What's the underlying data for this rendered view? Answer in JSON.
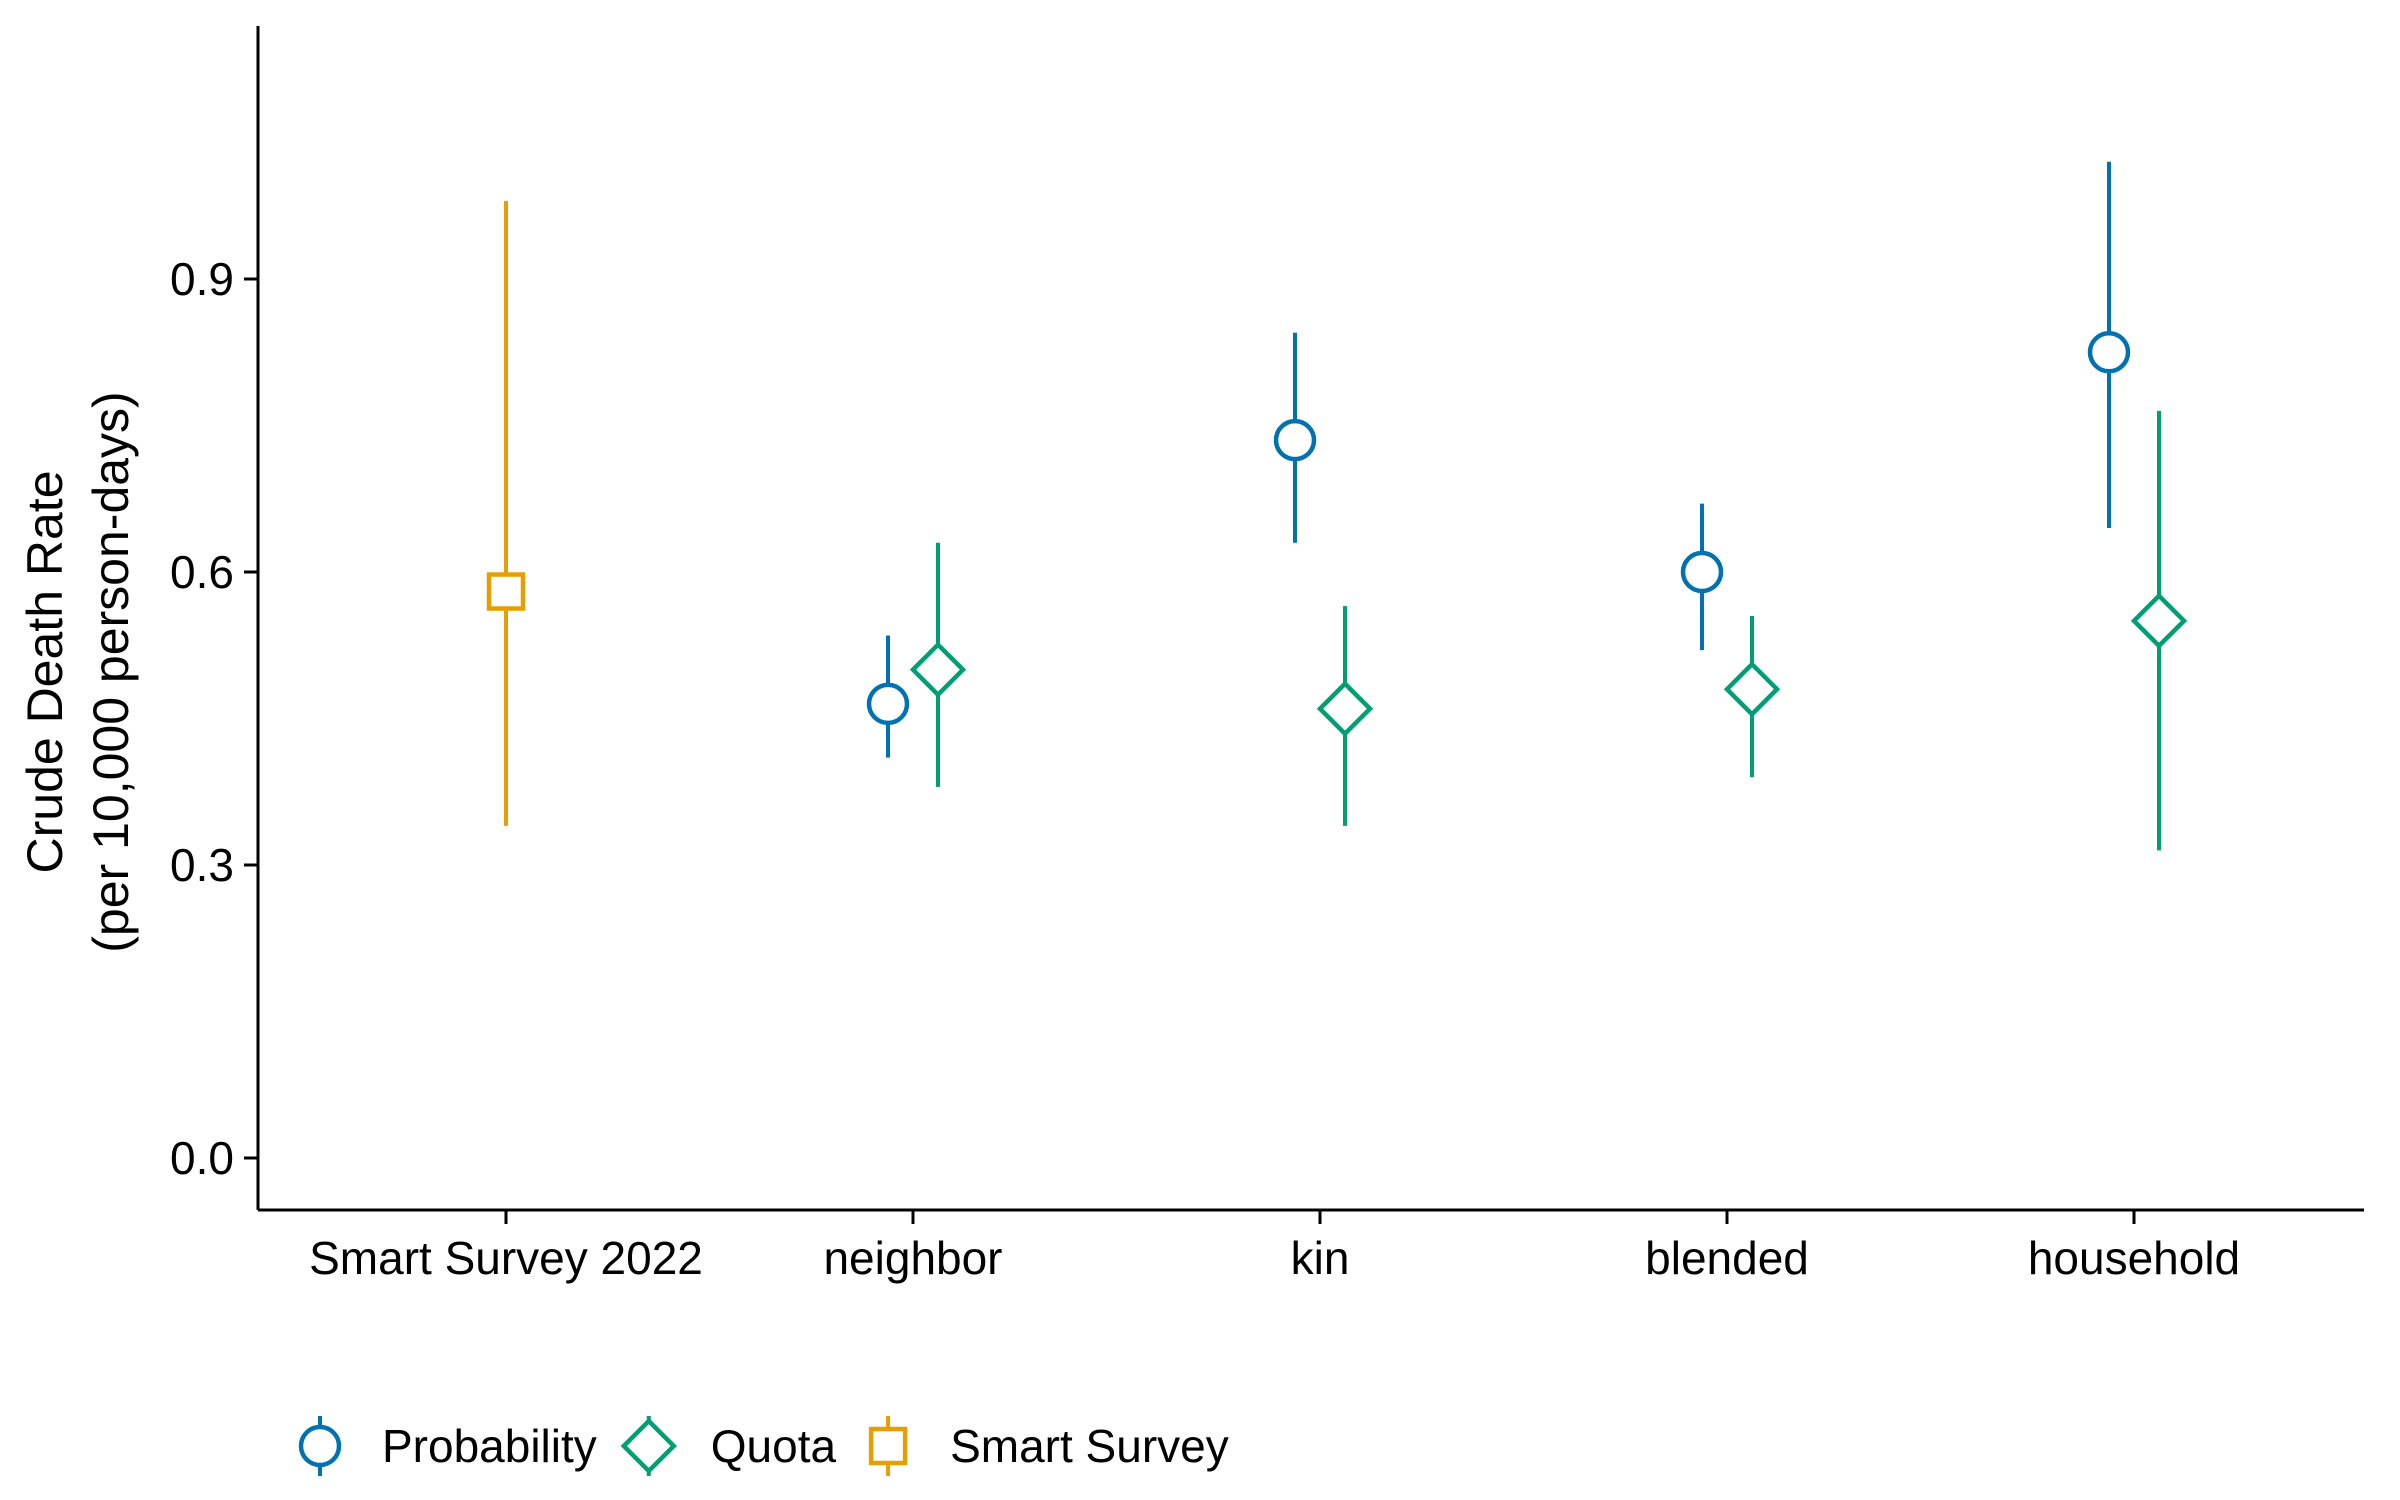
{
  "chart_data": {
    "type": "scatter",
    "subtype": "point-range",
    "title": "",
    "xlabel": "",
    "ylabel_lines": [
      "Crude Death Rate",
      "(per 10,000 person-days)"
    ],
    "categories": [
      "Smart Survey 2022",
      "neighbor",
      "kin",
      "blended",
      "household"
    ],
    "yticks": [
      "0.0",
      "0.3",
      "0.6",
      "0.9"
    ],
    "ylim": [
      -0.05,
      1.15
    ],
    "grid": false,
    "legend_position": "bottom-left",
    "series": [
      {
        "name": "Probability",
        "marker": "circle",
        "color": "#0072B2",
        "points": [
          {
            "category": "neighbor",
            "y": 0.465,
            "ymin": 0.41,
            "ymax": 0.535
          },
          {
            "category": "kin",
            "y": 0.735,
            "ymin": 0.63,
            "ymax": 0.845
          },
          {
            "category": "blended",
            "y": 0.6,
            "ymin": 0.52,
            "ymax": 0.67
          },
          {
            "category": "household",
            "y": 0.825,
            "ymin": 0.645,
            "ymax": 1.02
          }
        ]
      },
      {
        "name": "Quota",
        "marker": "diamond",
        "color": "#009E73",
        "points": [
          {
            "category": "neighbor",
            "y": 0.5,
            "ymin": 0.38,
            "ymax": 0.63
          },
          {
            "category": "kin",
            "y": 0.46,
            "ymin": 0.34,
            "ymax": 0.565
          },
          {
            "category": "blended",
            "y": 0.48,
            "ymin": 0.39,
            "ymax": 0.555
          },
          {
            "category": "household",
            "y": 0.55,
            "ymin": 0.315,
            "ymax": 0.765
          }
        ]
      },
      {
        "name": "Smart Survey",
        "marker": "square",
        "color": "#E69F00",
        "points": [
          {
            "category": "Smart Survey 2022",
            "y": 0.58,
            "ymin": 0.34,
            "ymax": 0.98
          }
        ]
      }
    ]
  }
}
